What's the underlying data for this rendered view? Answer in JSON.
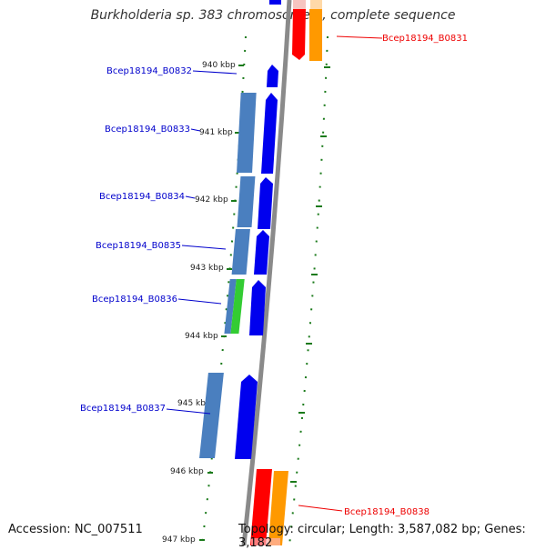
{
  "title": "Burkholderia sp. 383 chromosome 2, complete sequence",
  "footer": {
    "accession": "Accession: NC_007511",
    "summary": "Topology: circular; Length: 3,587,082 bp; Genes: 3,182"
  },
  "ruler_labels": [
    "940 kbp",
    "941 kbp",
    "942 kbp",
    "943 kbp",
    "944 kbp",
    "945 kbp",
    "946 kbp",
    "947 kbp"
  ],
  "colors": {
    "backbone": "#8a8a8a",
    "gene_forward": "#0000ee",
    "gene_reverse": "#ff0000",
    "cds_blue": "#4a7fbf",
    "cds_green": "#33cc33",
    "cds_orange": "#ff9900",
    "label_forward": "#0000cc",
    "label_reverse": "#ee0000",
    "tick": "#1a7a1a"
  },
  "genes": [
    {
      "name": "Bcep18194_B0831",
      "strand": "reverse"
    },
    {
      "name": "Bcep18194_B0832",
      "strand": "forward"
    },
    {
      "name": "Bcep18194_B0833",
      "strand": "forward"
    },
    {
      "name": "Bcep18194_B0834",
      "strand": "forward"
    },
    {
      "name": "Bcep18194_B0835",
      "strand": "forward"
    },
    {
      "name": "Bcep18194_B0836",
      "strand": "forward"
    },
    {
      "name": "Bcep18194_B0837",
      "strand": "forward"
    },
    {
      "name": "Bcep18194_B0838",
      "strand": "reverse"
    }
  ]
}
